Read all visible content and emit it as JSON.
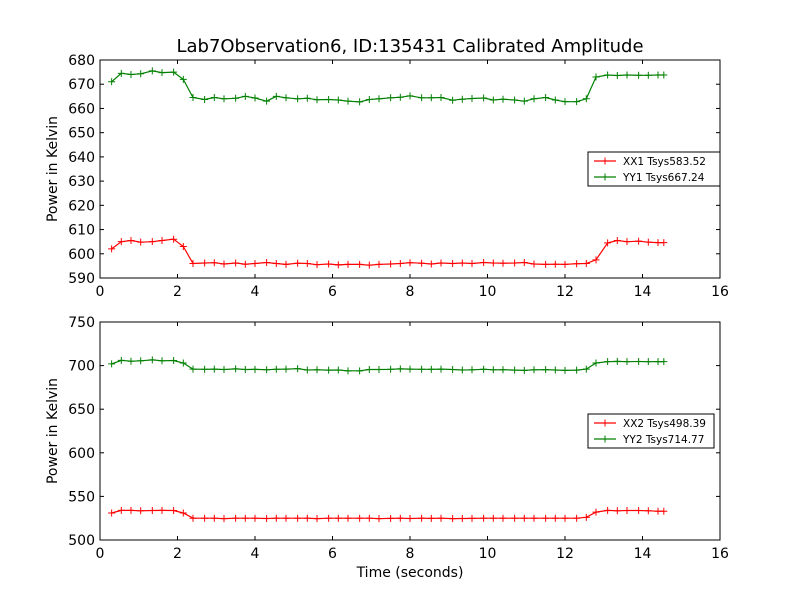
{
  "chart_data": [
    {
      "type": "line",
      "title": "Lab7Observation6, ID:135431 Calibrated Amplitude",
      "xlabel": "",
      "ylabel": "Power in Kelvin",
      "xlim": [
        0,
        16
      ],
      "ylim": [
        590,
        680
      ],
      "xticks": [
        0,
        2,
        4,
        6,
        8,
        10,
        12,
        14,
        16
      ],
      "yticks": [
        590,
        600,
        610,
        620,
        630,
        640,
        650,
        660,
        670,
        680
      ],
      "grid": false,
      "legend_position": "right",
      "x": [
        0.3,
        0.55,
        0.8,
        1.05,
        1.35,
        1.6,
        1.9,
        2.15,
        2.4,
        2.7,
        2.95,
        3.2,
        3.5,
        3.75,
        4.0,
        4.3,
        4.55,
        4.8,
        5.1,
        5.35,
        5.6,
        5.9,
        6.15,
        6.4,
        6.7,
        6.95,
        7.2,
        7.5,
        7.75,
        8.0,
        8.3,
        8.55,
        8.8,
        9.1,
        9.35,
        9.6,
        9.9,
        10.15,
        10.4,
        10.7,
        10.95,
        11.2,
        11.5,
        11.75,
        12.0,
        12.3,
        12.55,
        12.8,
        13.1,
        13.35,
        13.6,
        13.9,
        14.15,
        14.4,
        14.55
      ],
      "series": [
        {
          "name": "XX1 Tsys583.52",
          "color": "#ff0000",
          "values": [
            602,
            605,
            605.5,
            604.8,
            605,
            605.5,
            606,
            603,
            596,
            596.2,
            596.3,
            595.8,
            596.2,
            595.7,
            596,
            596.4,
            596,
            595.6,
            596.1,
            596,
            595.5,
            595.8,
            595.4,
            595.6,
            595.6,
            595.3,
            595.6,
            595.8,
            596,
            596.3,
            596.1,
            595.8,
            596.2,
            596,
            596.2,
            596,
            596.4,
            596.2,
            596.1,
            596.2,
            596.4,
            595.8,
            595.6,
            595.7,
            595.6,
            595.9,
            596,
            597.5,
            604.5,
            605.5,
            605,
            605.2,
            604.8,
            604.6,
            604.6
          ]
        },
        {
          "name": "YY1 Tsys667.24",
          "color": "#008000",
          "values": [
            671,
            674.5,
            674,
            674.3,
            675.5,
            674.8,
            675,
            672,
            664.5,
            663.7,
            664.5,
            664,
            664.2,
            665,
            664.3,
            663,
            665,
            664.4,
            664,
            664.2,
            663.6,
            663.7,
            663.5,
            663,
            662.7,
            663.7,
            664,
            664.4,
            664.6,
            665.2,
            664.4,
            664.4,
            664.5,
            663.4,
            663.8,
            664.1,
            664.3,
            663.5,
            663.8,
            663.5,
            663,
            664,
            664.5,
            663.5,
            662.8,
            662.8,
            664,
            673,
            673.8,
            673.6,
            673.8,
            673.7,
            673.7,
            673.8,
            673.8
          ]
        }
      ]
    },
    {
      "type": "line",
      "title": "",
      "xlabel": "Time (seconds)",
      "ylabel": "Power in Kelvin",
      "xlim": [
        0,
        16
      ],
      "ylim": [
        500,
        750
      ],
      "xticks": [
        0,
        2,
        4,
        6,
        8,
        10,
        12,
        14,
        16
      ],
      "yticks": [
        500,
        550,
        600,
        650,
        700,
        750
      ],
      "grid": false,
      "legend_position": "right",
      "x": [
        0.3,
        0.55,
        0.8,
        1.05,
        1.35,
        1.6,
        1.9,
        2.15,
        2.4,
        2.7,
        2.95,
        3.2,
        3.5,
        3.75,
        4.0,
        4.3,
        4.55,
        4.8,
        5.1,
        5.35,
        5.6,
        5.9,
        6.15,
        6.4,
        6.7,
        6.95,
        7.2,
        7.5,
        7.75,
        8.0,
        8.3,
        8.55,
        8.8,
        9.1,
        9.35,
        9.6,
        9.9,
        10.15,
        10.4,
        10.7,
        10.95,
        11.2,
        11.5,
        11.75,
        12.0,
        12.3,
        12.55,
        12.8,
        13.1,
        13.35,
        13.6,
        13.9,
        14.15,
        14.4,
        14.55
      ],
      "series": [
        {
          "name": "XX2 Tsys498.39",
          "color": "#ff0000",
          "values": [
            531,
            534,
            534,
            533.5,
            533.8,
            534,
            533.8,
            531,
            525,
            525,
            525,
            524.5,
            525,
            525,
            525,
            524.7,
            525,
            525,
            525,
            525,
            524.5,
            525,
            525,
            525,
            525,
            525,
            524.5,
            524.8,
            525,
            524.6,
            525,
            524.8,
            525,
            524.5,
            524.6,
            524.8,
            525,
            525,
            525,
            525,
            525,
            525,
            525,
            525,
            525,
            525,
            526,
            532,
            534,
            533.5,
            533.8,
            533.8,
            533.5,
            533,
            533
          ]
        },
        {
          "name": "YY2 Tsys714.77",
          "color": "#008000",
          "values": [
            702,
            706,
            705,
            705.5,
            706.5,
            705.5,
            705.8,
            703,
            696,
            695.8,
            696,
            695.5,
            696.2,
            695.5,
            695.6,
            695.3,
            695.8,
            696,
            696.5,
            695,
            695.2,
            694.8,
            695,
            694,
            694,
            695.5,
            695.5,
            695.8,
            696.2,
            696,
            695.8,
            695.8,
            696,
            695.5,
            695,
            695.2,
            695.8,
            695.2,
            695.3,
            694.8,
            694.5,
            695.2,
            695.4,
            695,
            694.5,
            694.8,
            696,
            703,
            704.5,
            704.8,
            704.5,
            704.7,
            704.5,
            704.6,
            704.6
          ]
        }
      ]
    }
  ]
}
